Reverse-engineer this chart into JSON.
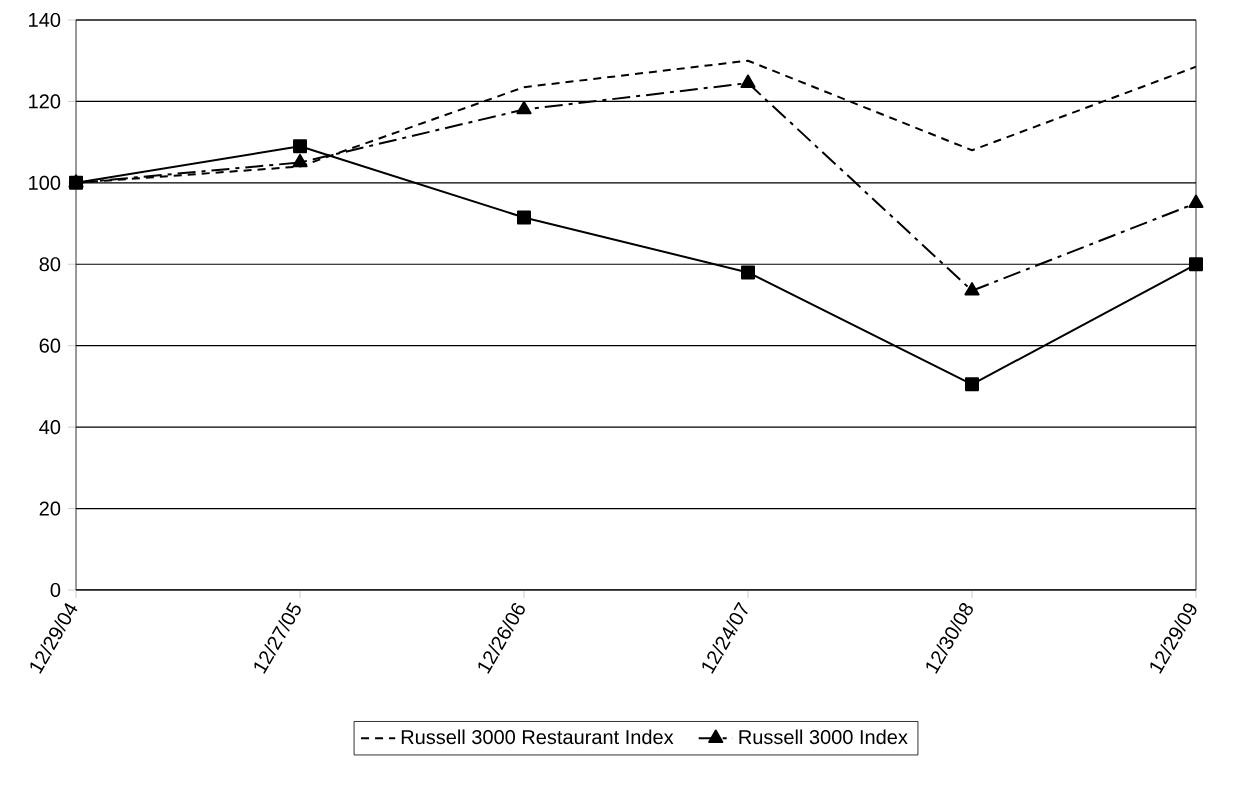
{
  "chart_data": {
    "type": "line",
    "categories": [
      "12/29/04",
      "12/27/05",
      "12/26/06",
      "12/24/07",
      "12/30/08",
      "12/29/09"
    ],
    "series": [
      {
        "name": "Russell 3000 Restaurant Index",
        "color": "#000000",
        "line_style": "dashed",
        "marker": "none",
        "values": [
          100,
          104,
          123.5,
          130,
          108,
          128.5
        ]
      },
      {
        "name": "Russell 3000 Index",
        "color": "#000000",
        "line_style": "dashdotted",
        "marker": "triangle",
        "values": [
          100,
          105,
          118,
          124.5,
          73.5,
          95
        ]
      },
      {
        "color": "#000000",
        "line_style": "solid",
        "marker": "square",
        "values": [
          100,
          109,
          91.5,
          78,
          50.5,
          80
        ]
      }
    ],
    "ylim": [
      0,
      140
    ],
    "yticks": [
      0,
      20,
      40,
      60,
      80,
      100,
      120,
      140
    ],
    "grid": "y",
    "legend": "bottom"
  }
}
